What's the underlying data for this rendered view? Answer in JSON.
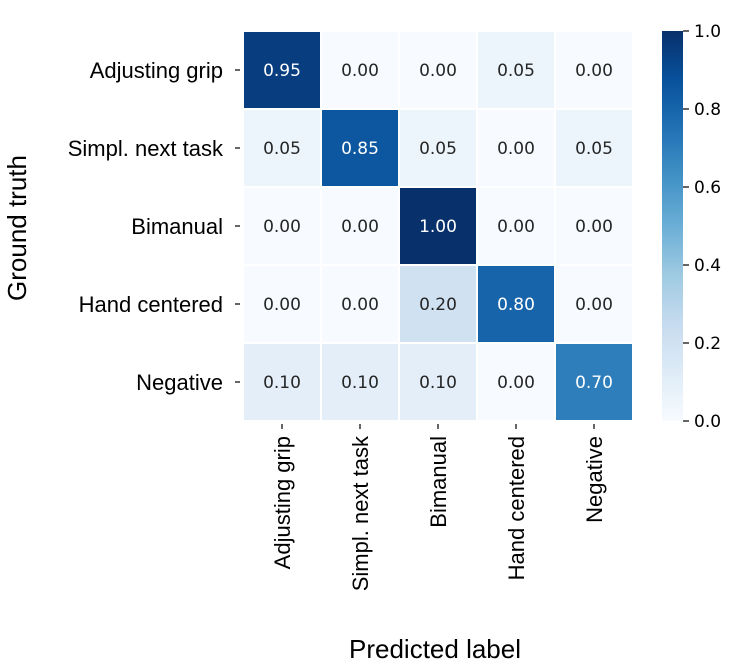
{
  "chart_data": {
    "type": "heatmap",
    "title": "",
    "xlabel": "Predicted label",
    "ylabel": "Ground truth",
    "x_categories": [
      "Adjusting grip",
      "Simpl. next task",
      "Bimanual",
      "Hand centered",
      "Negative"
    ],
    "y_categories": [
      "Adjusting grip",
      "Simpl. next task",
      "Bimanual",
      "Hand centered",
      "Negative"
    ],
    "values": [
      [
        0.95,
        0.0,
        0.0,
        0.05,
        0.0
      ],
      [
        0.05,
        0.85,
        0.05,
        0.0,
        0.05
      ],
      [
        0.0,
        0.0,
        1.0,
        0.0,
        0.0
      ],
      [
        0.0,
        0.0,
        0.2,
        0.8,
        0.0
      ],
      [
        0.1,
        0.1,
        0.1,
        0.0,
        0.7
      ]
    ],
    "value_labels": [
      [
        "0.95",
        "0.00",
        "0.00",
        "0.05",
        "0.00"
      ],
      [
        "0.05",
        "0.85",
        "0.05",
        "0.00",
        "0.05"
      ],
      [
        "0.00",
        "0.00",
        "1.00",
        "0.00",
        "0.00"
      ],
      [
        "0.00",
        "0.00",
        "0.20",
        "0.80",
        "0.00"
      ],
      [
        "0.10",
        "0.10",
        "0.10",
        "0.00",
        "0.70"
      ]
    ],
    "colorbar": {
      "range": [
        0.0,
        1.0
      ],
      "ticks": [
        0.0,
        0.2,
        0.4,
        0.6,
        0.8,
        1.0
      ],
      "tick_labels": [
        "0.0",
        "0.2",
        "0.4",
        "0.6",
        "0.8",
        "1.0"
      ],
      "colormap": "Blues"
    }
  }
}
